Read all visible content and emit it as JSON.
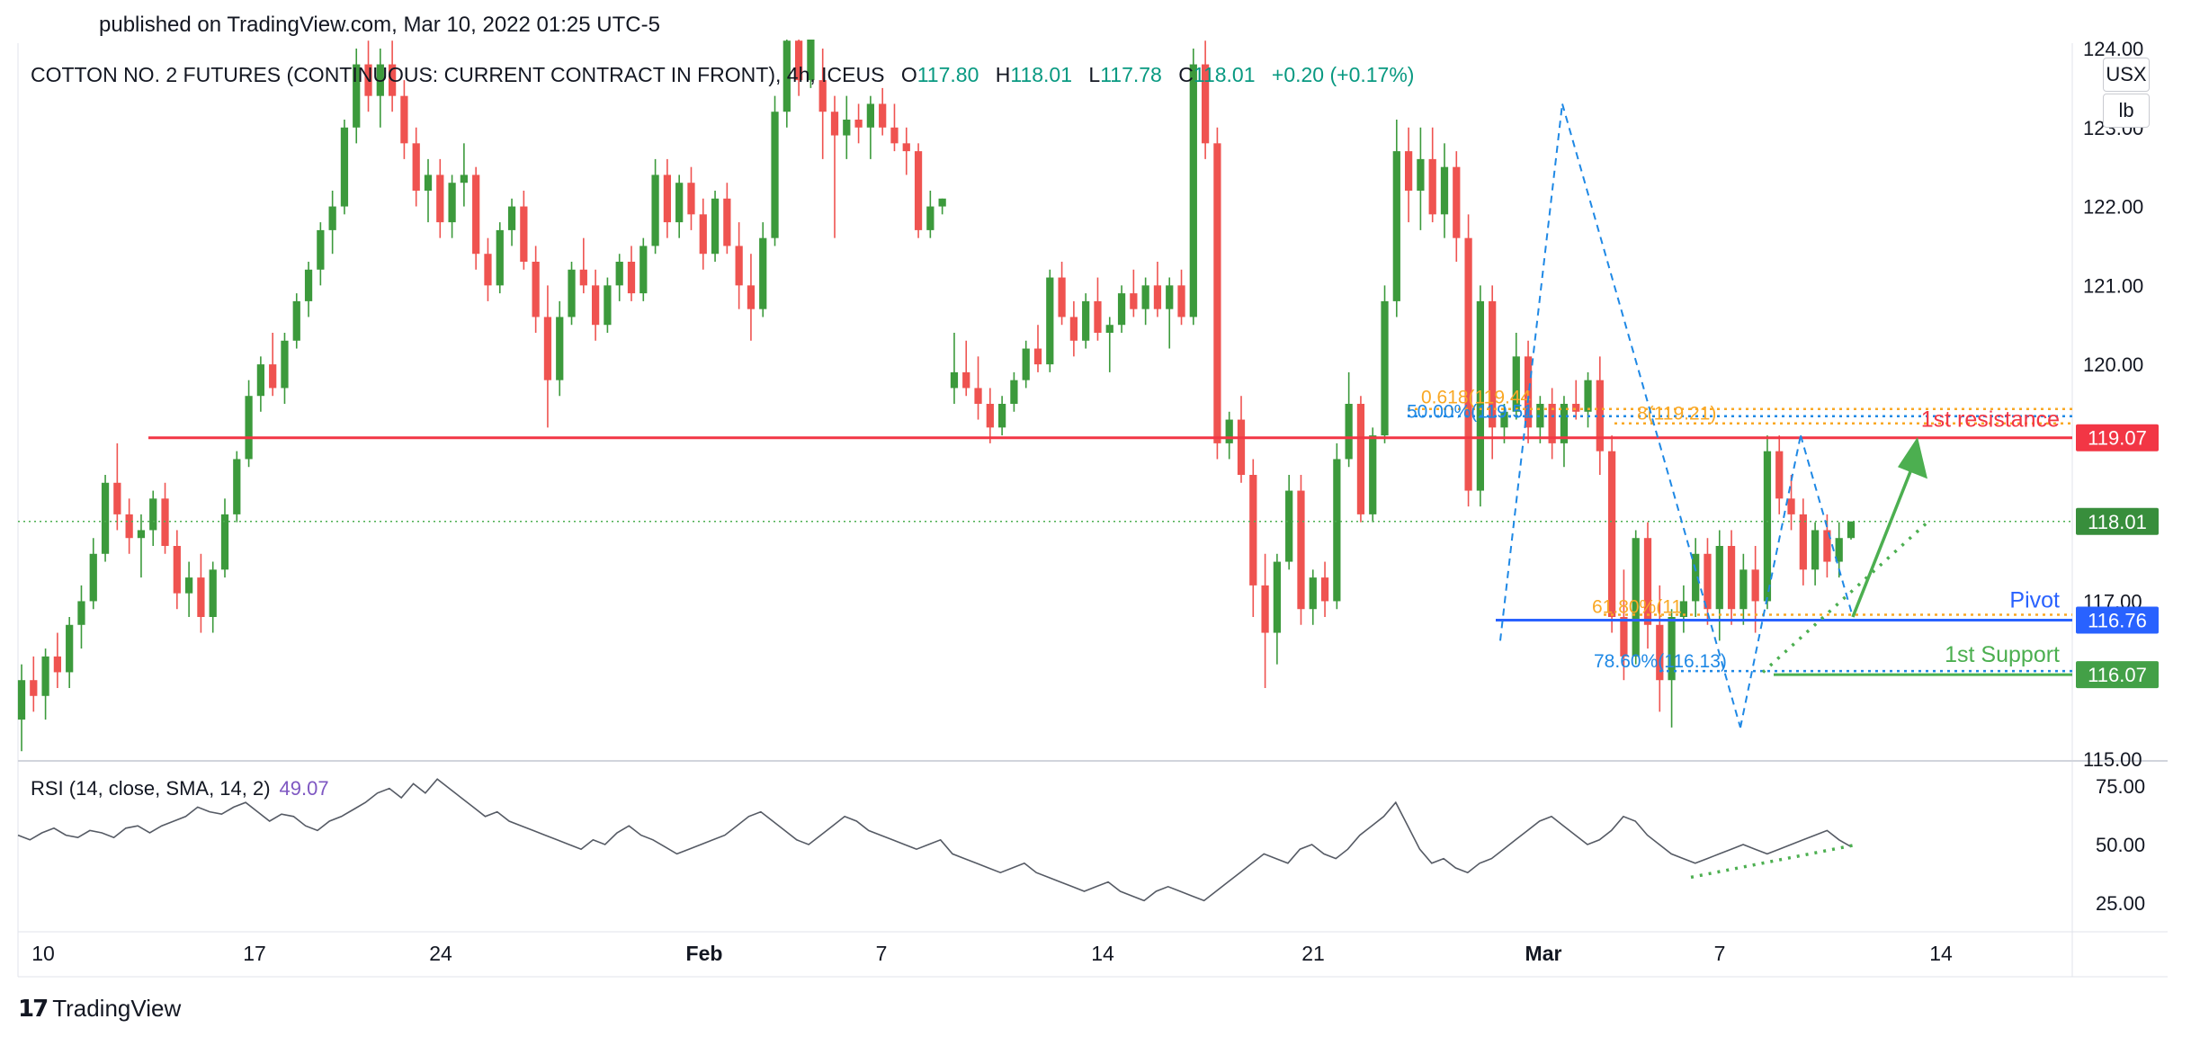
{
  "header": {
    "published": "published on TradingView.com, Mar 10, 2022 01:25 UTC-5"
  },
  "legend": {
    "symbol": "COTTON NO. 2 FUTURES (CONTINUOUS: CURRENT CONTRACT IN FRONT), 4h, ICEUS",
    "o_label": "O",
    "o": "117.80",
    "h_label": "H",
    "h": "118.01",
    "l_label": "L",
    "l": "117.78",
    "c_label": "C",
    "c": "118.01",
    "change": "+0.20 (+0.17%)"
  },
  "units": {
    "currency": "USX",
    "measure": "lb"
  },
  "rsi": {
    "label": "RSI (14, close, SMA, 14, 2)",
    "value": "49.07"
  },
  "brand": {
    "name": "TradingView"
  },
  "colors": {
    "up": "#26a69a",
    "upCandle": "#3c9a3c",
    "down": "#ef5350",
    "resistance": "#f23645",
    "pivot": "#2962ff",
    "support": "#4caf50",
    "fib": "#f9a825",
    "fibBlue": "#1e88e5"
  },
  "chart_data": [
    {
      "type": "candlestick",
      "title": "COTTON NO. 2 FUTURES (CONTINUOUS: CURRENT CONTRACT IN FRONT), 4h, ICEUS",
      "x_tick_labels": [
        "10",
        "17",
        "24",
        "Feb",
        "7",
        "14",
        "21",
        "Mar",
        "7",
        "14"
      ],
      "y_tick_labels": [
        "115.00",
        "116.00",
        "117.00",
        "118.00",
        "119.00",
        "120.00",
        "121.00",
        "122.00",
        "123.00",
        "124.00"
      ],
      "ylim": [
        115.0,
        124.0
      ],
      "grid": false,
      "price_levels": [
        {
          "name": "1st resistance",
          "value": 119.07,
          "label": "119.07"
        },
        {
          "name": "last",
          "value": 118.01,
          "label": "118.01"
        },
        {
          "name": "Pivot",
          "value": 116.76,
          "label": "116.76"
        },
        {
          "name": "1st Support",
          "value": 116.07,
          "label": "116.07"
        }
      ],
      "annotations": [
        "1st resistance",
        "Pivot",
        "1st Support",
        "61.80%(11",
        "78.60%(116.13)",
        "50.00%(119.51",
        "0.618(119.44",
        "8(119.21)"
      ],
      "candles": [
        [
          115.5,
          116.2,
          115.1,
          116.0
        ],
        [
          116.0,
          116.3,
          115.6,
          115.8
        ],
        [
          115.8,
          116.4,
          115.5,
          116.3
        ],
        [
          116.3,
          116.6,
          115.9,
          116.1
        ],
        [
          116.1,
          116.8,
          115.9,
          116.7
        ],
        [
          116.7,
          117.2,
          116.4,
          117.0
        ],
        [
          117.0,
          117.8,
          116.9,
          117.6
        ],
        [
          117.6,
          118.6,
          117.5,
          118.5
        ],
        [
          118.5,
          119.0,
          117.9,
          118.1
        ],
        [
          118.1,
          118.3,
          117.6,
          117.8
        ],
        [
          117.8,
          118.1,
          117.3,
          117.9
        ],
        [
          117.9,
          118.4,
          117.7,
          118.3
        ],
        [
          118.3,
          118.5,
          117.6,
          117.7
        ],
        [
          117.7,
          117.9,
          116.9,
          117.1
        ],
        [
          117.1,
          117.5,
          116.8,
          117.3
        ],
        [
          117.3,
          117.6,
          116.6,
          116.8
        ],
        [
          116.8,
          117.5,
          116.6,
          117.4
        ],
        [
          117.4,
          118.3,
          117.3,
          118.1
        ],
        [
          118.1,
          118.9,
          118.0,
          118.8
        ],
        [
          118.8,
          119.8,
          118.7,
          119.6
        ],
        [
          119.6,
          120.1,
          119.4,
          120.0
        ],
        [
          120.0,
          120.4,
          119.6,
          119.7
        ],
        [
          119.7,
          120.4,
          119.5,
          120.3
        ],
        [
          120.3,
          120.9,
          120.2,
          120.8
        ],
        [
          120.8,
          121.3,
          120.6,
          121.2
        ],
        [
          121.2,
          121.8,
          121.0,
          121.7
        ],
        [
          121.7,
          122.2,
          121.4,
          122.0
        ],
        [
          122.0,
          123.1,
          121.9,
          123.0
        ],
        [
          123.0,
          124.0,
          122.8,
          123.8
        ],
        [
          123.8,
          124.1,
          123.2,
          123.4
        ],
        [
          123.4,
          124.0,
          123.0,
          123.8
        ],
        [
          123.8,
          124.1,
          123.2,
          123.4
        ],
        [
          123.4,
          123.6,
          122.6,
          122.8
        ],
        [
          122.8,
          123.0,
          122.0,
          122.2
        ],
        [
          122.2,
          122.6,
          121.8,
          122.4
        ],
        [
          122.4,
          122.6,
          121.6,
          121.8
        ],
        [
          121.8,
          122.4,
          121.6,
          122.3
        ],
        [
          122.3,
          122.8,
          122.0,
          122.4
        ],
        [
          122.4,
          122.5,
          121.2,
          121.4
        ],
        [
          121.4,
          121.6,
          120.8,
          121.0
        ],
        [
          121.0,
          121.8,
          120.9,
          121.7
        ],
        [
          121.7,
          122.1,
          121.5,
          122.0
        ],
        [
          122.0,
          122.2,
          121.2,
          121.3
        ],
        [
          121.3,
          121.5,
          120.4,
          120.6
        ],
        [
          120.6,
          121.0,
          119.2,
          119.8
        ],
        [
          119.8,
          120.8,
          119.6,
          120.6
        ],
        [
          120.6,
          121.3,
          120.5,
          121.2
        ],
        [
          121.2,
          121.6,
          120.9,
          121.0
        ],
        [
          121.0,
          121.2,
          120.3,
          120.5
        ],
        [
          120.5,
          121.1,
          120.4,
          121.0
        ],
        [
          121.0,
          121.4,
          120.8,
          121.3
        ],
        [
          121.3,
          121.5,
          120.8,
          120.9
        ],
        [
          120.9,
          121.6,
          120.8,
          121.5
        ],
        [
          121.5,
          122.6,
          121.4,
          122.4
        ],
        [
          122.4,
          122.6,
          121.6,
          121.8
        ],
        [
          121.8,
          122.4,
          121.6,
          122.3
        ],
        [
          122.3,
          122.5,
          121.7,
          121.9
        ],
        [
          121.9,
          122.1,
          121.2,
          121.4
        ],
        [
          121.4,
          122.2,
          121.3,
          122.1
        ],
        [
          122.1,
          122.3,
          121.4,
          121.5
        ],
        [
          121.5,
          121.8,
          120.7,
          121.0
        ],
        [
          121.0,
          121.4,
          120.3,
          120.7
        ],
        [
          120.7,
          121.8,
          120.6,
          121.6
        ],
        [
          121.6,
          123.4,
          121.5,
          123.2
        ],
        [
          123.2,
          124.3,
          123.0,
          124.1
        ],
        [
          124.1,
          124.2,
          123.4,
          123.6
        ],
        [
          123.6,
          124.5,
          123.5,
          124.3
        ],
        [
          123.6,
          124.0,
          122.6,
          123.2
        ],
        [
          123.2,
          123.4,
          121.6,
          122.9
        ],
        [
          122.9,
          123.4,
          122.6,
          123.1
        ],
        [
          123.1,
          123.3,
          122.8,
          123.0
        ],
        [
          123.0,
          123.4,
          122.6,
          123.3
        ],
        [
          123.3,
          123.5,
          122.9,
          123.0
        ],
        [
          123.0,
          123.3,
          122.7,
          122.8
        ],
        [
          122.8,
          123.0,
          122.4,
          122.7
        ],
        [
          122.7,
          122.8,
          121.6,
          121.7
        ],
        [
          121.7,
          122.2,
          121.6,
          122.0
        ],
        [
          122.0,
          122.1,
          121.9,
          122.1
        ],
        [
          119.7,
          120.4,
          119.5,
          119.9
        ],
        [
          119.9,
          120.3,
          119.6,
          119.7
        ],
        [
          119.7,
          120.1,
          119.3,
          119.5
        ],
        [
          119.5,
          119.7,
          119.0,
          119.2
        ],
        [
          119.2,
          119.6,
          119.1,
          119.5
        ],
        [
          119.5,
          119.9,
          119.4,
          119.8
        ],
        [
          119.8,
          120.3,
          119.7,
          120.2
        ],
        [
          120.2,
          120.5,
          119.9,
          120.0
        ],
        [
          120.0,
          121.2,
          119.9,
          121.1
        ],
        [
          121.1,
          121.3,
          120.5,
          120.6
        ],
        [
          120.6,
          120.8,
          120.1,
          120.3
        ],
        [
          120.3,
          120.9,
          120.2,
          120.8
        ],
        [
          120.8,
          121.1,
          120.3,
          120.4
        ],
        [
          120.4,
          120.6,
          119.9,
          120.5
        ],
        [
          120.5,
          121.0,
          120.4,
          120.9
        ],
        [
          120.9,
          121.2,
          120.6,
          120.7
        ],
        [
          120.7,
          121.1,
          120.5,
          121.0
        ],
        [
          121.0,
          121.3,
          120.6,
          120.7
        ],
        [
          120.7,
          121.1,
          120.2,
          121.0
        ],
        [
          121.0,
          121.2,
          120.5,
          120.6
        ],
        [
          120.6,
          124.0,
          120.5,
          123.8
        ],
        [
          123.8,
          124.1,
          122.6,
          122.8
        ],
        [
          122.8,
          123.0,
          118.8,
          119.0
        ],
        [
          119.0,
          119.4,
          118.8,
          119.3
        ],
        [
          119.3,
          119.6,
          118.5,
          118.6
        ],
        [
          118.6,
          118.8,
          116.8,
          117.2
        ],
        [
          117.2,
          117.6,
          115.9,
          116.6
        ],
        [
          116.6,
          117.6,
          116.2,
          117.5
        ],
        [
          117.5,
          118.6,
          117.4,
          118.4
        ],
        [
          118.4,
          118.6,
          116.7,
          116.9
        ],
        [
          116.9,
          117.4,
          116.7,
          117.3
        ],
        [
          117.3,
          117.5,
          116.8,
          117.0
        ],
        [
          117.0,
          119.0,
          116.9,
          118.8
        ],
        [
          118.8,
          119.9,
          118.7,
          119.5
        ],
        [
          119.5,
          119.6,
          118.0,
          118.1
        ],
        [
          118.1,
          119.2,
          118.0,
          119.1
        ],
        [
          119.1,
          121.0,
          119.0,
          120.8
        ],
        [
          120.8,
          123.1,
          120.6,
          122.7
        ],
        [
          122.7,
          123.0,
          121.8,
          122.2
        ],
        [
          122.2,
          123.0,
          121.7,
          122.6
        ],
        [
          122.6,
          123.0,
          121.8,
          121.9
        ],
        [
          121.9,
          122.8,
          121.6,
          122.5
        ],
        [
          122.5,
          122.7,
          121.3,
          121.6
        ],
        [
          121.6,
          121.9,
          118.2,
          118.4
        ],
        [
          118.4,
          121.0,
          118.2,
          120.8
        ],
        [
          120.8,
          121.0,
          118.8,
          119.2
        ],
        [
          119.2,
          119.5,
          119.0,
          119.4
        ],
        [
          119.4,
          120.4,
          119.3,
          120.1
        ],
        [
          120.1,
          120.3,
          119.0,
          119.2
        ],
        [
          119.2,
          119.6,
          119.0,
          119.5
        ],
        [
          119.5,
          119.7,
          118.8,
          119.0
        ],
        [
          119.0,
          119.6,
          118.7,
          119.5
        ],
        [
          119.5,
          119.8,
          119.3,
          119.4
        ],
        [
          119.4,
          119.9,
          119.2,
          119.8
        ],
        [
          119.8,
          120.1,
          118.6,
          118.9
        ],
        [
          118.9,
          119.1,
          116.6,
          116.8
        ],
        [
          116.8,
          117.4,
          116.0,
          116.3
        ],
        [
          116.3,
          117.9,
          116.2,
          117.8
        ],
        [
          117.8,
          118.0,
          116.4,
          116.7
        ],
        [
          116.7,
          117.2,
          115.6,
          116.0
        ],
        [
          116.0,
          116.9,
          115.4,
          116.8
        ],
        [
          116.8,
          117.2,
          116.6,
          117.0
        ],
        [
          117.0,
          117.8,
          116.8,
          117.6
        ],
        [
          117.6,
          117.8,
          116.7,
          116.9
        ],
        [
          116.9,
          117.9,
          116.5,
          117.7
        ],
        [
          117.7,
          117.9,
          116.7,
          116.9
        ],
        [
          116.9,
          117.6,
          116.7,
          117.4
        ],
        [
          117.4,
          117.7,
          116.6,
          117.0
        ],
        [
          117.0,
          119.1,
          116.9,
          118.9
        ],
        [
          118.9,
          119.1,
          118.1,
          118.3
        ],
        [
          118.3,
          118.6,
          117.9,
          118.1
        ],
        [
          118.1,
          118.3,
          117.2,
          117.4
        ],
        [
          117.4,
          118.0,
          117.2,
          117.9
        ],
        [
          117.9,
          118.1,
          117.3,
          117.5
        ],
        [
          117.5,
          118.0,
          117.3,
          117.8
        ],
        [
          117.8,
          118.01,
          117.78,
          118.01
        ]
      ]
    },
    {
      "type": "line",
      "title": "RSI (14, close, SMA, 14, 2)",
      "y_tick_labels": [
        "25.00",
        "50.00",
        "75.00"
      ],
      "ylim": [
        15,
        85
      ],
      "latest": 49.07,
      "values": [
        54,
        52,
        55,
        57,
        54,
        53,
        56,
        55,
        53,
        57,
        58,
        55,
        58,
        60,
        62,
        66,
        64,
        63,
        66,
        68,
        64,
        60,
        63,
        62,
        58,
        56,
        60,
        62,
        65,
        68,
        72,
        74,
        70,
        76,
        72,
        78,
        74,
        70,
        66,
        62,
        64,
        60,
        58,
        56,
        54,
        52,
        50,
        48,
        52,
        50,
        55,
        58,
        54,
        52,
        49,
        46,
        48,
        50,
        52,
        54,
        58,
        62,
        64,
        60,
        56,
        52,
        50,
        54,
        58,
        62,
        60,
        56,
        54,
        52,
        50,
        48,
        50,
        52,
        46,
        44,
        42,
        40,
        38,
        40,
        42,
        38,
        36,
        34,
        32,
        30,
        32,
        34,
        30,
        28,
        26,
        30,
        32,
        30,
        28,
        26,
        30,
        34,
        38,
        42,
        46,
        44,
        42,
        48,
        50,
        46,
        44,
        48,
        54,
        58,
        62,
        68,
        58,
        48,
        42,
        44,
        40,
        38,
        42,
        44,
        48,
        52,
        56,
        60,
        62,
        58,
        54,
        50,
        52,
        56,
        62,
        60,
        54,
        50,
        46,
        44,
        42,
        44,
        46,
        48,
        50,
        48,
        46,
        48,
        50,
        52,
        54,
        56,
        52,
        49.07
      ]
    }
  ]
}
